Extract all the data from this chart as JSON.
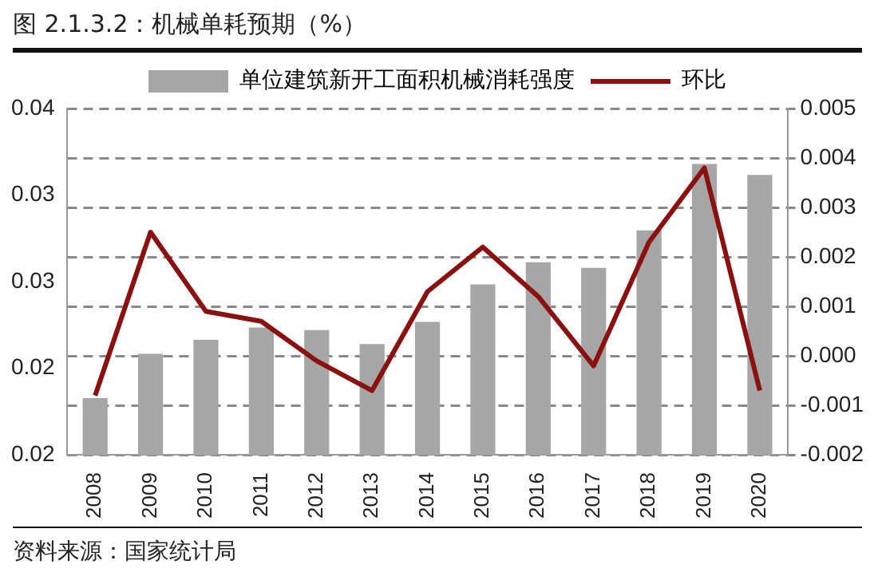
{
  "chart_data": {
    "type": "bar",
    "title": "图 2.1.3.2：机械单耗预期（%）",
    "categories": [
      "2008",
      "2009",
      "2010",
      "2011",
      "2012",
      "2013",
      "2014",
      "2015",
      "2016",
      "2017",
      "2018",
      "2019",
      "2020"
    ],
    "series": [
      {
        "name": "单位建筑新开工面积机械消耗强度",
        "color": "#a6a6a6",
        "values": [
          0.0191,
          0.0223,
          0.0233,
          0.0242,
          0.024,
          0.023,
          0.0246,
          0.0273,
          0.0289,
          0.0285,
          0.0312,
          0.036,
          0.0352
        ]
      },
      {
        "name": "环比",
        "type": "line",
        "axis": "y2",
        "color": "#8b1010",
        "values": [
          -0.0008,
          0.0025,
          0.0009,
          0.0007,
          -0.0001,
          -0.0007,
          0.0013,
          0.0022,
          0.0012,
          -0.0002,
          0.0023,
          0.0038,
          -0.0007
        ]
      }
    ],
    "ylim": [
      0.015,
      0.04
    ],
    "yticks": [
      {
        "value": 0.015,
        "label": "0.02"
      },
      {
        "value": 0.02125,
        "label": "0.02"
      },
      {
        "value": 0.0275,
        "label": "0.03"
      },
      {
        "value": 0.03375,
        "label": "0.03"
      },
      {
        "value": 0.04,
        "label": "0.04"
      }
    ],
    "y2lim": [
      -0.002,
      0.005
    ],
    "y2ticks": [
      {
        "value": -0.002,
        "label": "-0.002"
      },
      {
        "value": -0.001,
        "label": "-0.001"
      },
      {
        "value": 0,
        "label": "0.000"
      },
      {
        "value": 0.001,
        "label": "0.001"
      },
      {
        "value": 0.002,
        "label": "0.002"
      },
      {
        "value": 0.003,
        "label": "0.003"
      },
      {
        "value": 0.004,
        "label": "0.004"
      },
      {
        "value": 0.005,
        "label": "0.005"
      }
    ],
    "grid": true,
    "legend": "top",
    "marker": "none",
    "line_style": "solid",
    "annotations": [
      "资料来源：国家统计局"
    ]
  }
}
